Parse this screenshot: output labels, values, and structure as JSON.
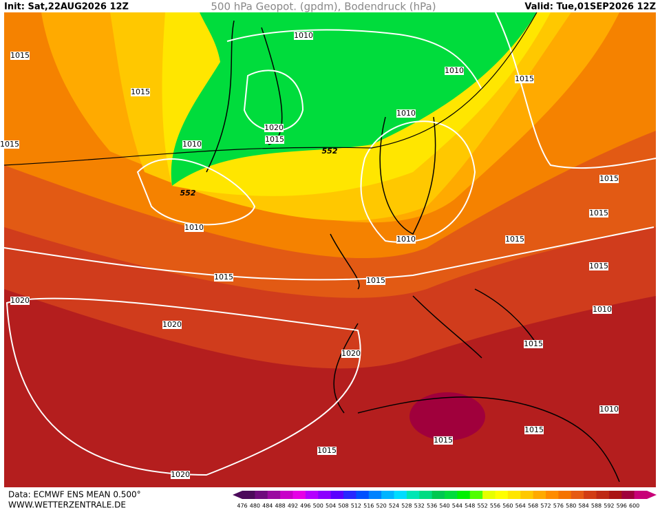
{
  "header": {
    "init": "Init: Sat,22AUG2026 12Z",
    "title": "500 hPa Geopot. (gpdm), Bodendruck (hPa)",
    "valid": "Valid: Tue,01SEP2026 12Z"
  },
  "map": {
    "labels": [
      "1015",
      "1015",
      "1015",
      "1015",
      "1015",
      "1015",
      "1015",
      "1015",
      "1015",
      "1015",
      "1015",
      "1015",
      "1015",
      "1010",
      "1010",
      "1010",
      "1010",
      "1010",
      "1010",
      "1010",
      "1010",
      "1020",
      "1020",
      "1020",
      "1020",
      "1020",
      "1015",
      "1015",
      "552",
      "552"
    ]
  },
  "legend": {
    "ticks": [
      476,
      480,
      484,
      488,
      492,
      496,
      500,
      504,
      508,
      512,
      516,
      520,
      524,
      528,
      532,
      536,
      540,
      544,
      548,
      552,
      556,
      560,
      564,
      568,
      572,
      576,
      580,
      584,
      588,
      592,
      596,
      600
    ],
    "colors": [
      "#4b0a5a",
      "#6e0a7d",
      "#9a0aa0",
      "#c800c8",
      "#e600e6",
      "#b400ff",
      "#8c00ff",
      "#5a00ff",
      "#2828ff",
      "#0050ff",
      "#0082ff",
      "#00b4ff",
      "#00dcff",
      "#00e6b4",
      "#00dc82",
      "#00c850",
      "#00dc3c",
      "#00f000",
      "#50ff00",
      "#e6ff00",
      "#ffff00",
      "#ffe600",
      "#ffc800",
      "#ffaa00",
      "#ff8c00",
      "#f57300",
      "#e65a14",
      "#d23c14",
      "#be2814",
      "#aa1414",
      "#a0003c",
      "#c80078"
    ]
  },
  "footer": {
    "source": "Data: ECMWF ENS MEAN 0.500°",
    "site": "WWW.WETTERZENTRALE.DE"
  }
}
